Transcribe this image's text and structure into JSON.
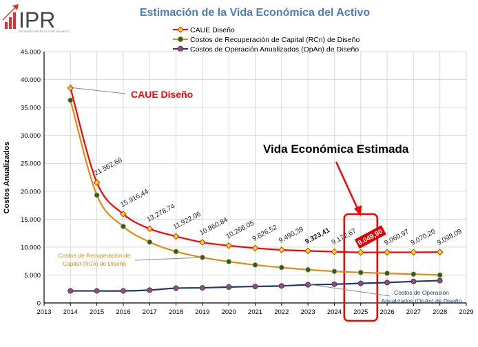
{
  "logo": {
    "text": "IPR",
    "tagline": "INTEGRATED PROJECT & PLANT RELIABILITY"
  },
  "chart_data": {
    "type": "line",
    "title": "Estimación de la Vida Económica del Activo",
    "xlabel": "",
    "ylabel": "Costos Anualizados",
    "xlim": [
      2013,
      2029
    ],
    "ylim": [
      0,
      45000
    ],
    "x_ticks": [
      "2013",
      "2014",
      "2015",
      "2016",
      "2017",
      "2018",
      "2019",
      "2020",
      "2021",
      "2022",
      "2023",
      "2024",
      "2025",
      "2026",
      "2027",
      "2028",
      "2029"
    ],
    "y_ticks": [
      "0",
      "5.000",
      "10.000",
      "15.000",
      "20.000",
      "25.000",
      "30.000",
      "35.000",
      "40.000",
      "45.000"
    ],
    "x": [
      2014,
      2015,
      2016,
      2017,
      2018,
      2019,
      2020,
      2021,
      2022,
      2023,
      2024,
      2025,
      2026,
      2027,
      2028
    ],
    "series": [
      {
        "name": "CAUE Diseño",
        "color": "#ff0000",
        "marker": "diamond",
        "markerColor": "#ffd700",
        "values": [
          38500,
          21562.68,
          15916.44,
          13278.74,
          11922.06,
          10860.84,
          10266.05,
          9826.52,
          9490.39,
          9323.41,
          9172.67,
          9049.9,
          9060.97,
          9070.2,
          9098.09
        ]
      },
      {
        "name": "Costos de Recuperación de Capital (RCn) de Diseño",
        "color": "#e08b10",
        "marker": "circle",
        "markerColor": "#1f5f3a",
        "values": [
          36300,
          19300,
          13700,
          10900,
          9200,
          8150,
          7400,
          6800,
          6350,
          5950,
          5650,
          5450,
          5300,
          5150,
          5000
        ]
      },
      {
        "name": "Costos de Operación Anualizados (OpAn) de Diseño",
        "color": "#1f3864",
        "marker": "circle",
        "markerColor": "#a0457a",
        "values": [
          2150,
          2150,
          2150,
          2300,
          2650,
          2700,
          2850,
          2950,
          3050,
          3250,
          3350,
          3500,
          3650,
          3850,
          4000
        ]
      }
    ],
    "data_labels": [
      "21.562,68",
      "15.916,44",
      "13.278,74",
      "11.922,06",
      "10.860,84",
      "10.266,05",
      "9.826,52",
      "9.490,39",
      "9.323,41",
      "9.172,67",
      "9.049,90",
      "9.060,97",
      "9.070,20",
      "9.098,09"
    ],
    "annotations": {
      "caue": "CAUE Diseño",
      "vida": "Vida Económica Estimada",
      "rcn": "Costos de Recuperación de Capital (RCn) de Diseño",
      "opan": "Costos de Operación Anualizados (OpAn) de Diseño"
    },
    "highlight_year": 2025,
    "legend_position": "top-center"
  }
}
